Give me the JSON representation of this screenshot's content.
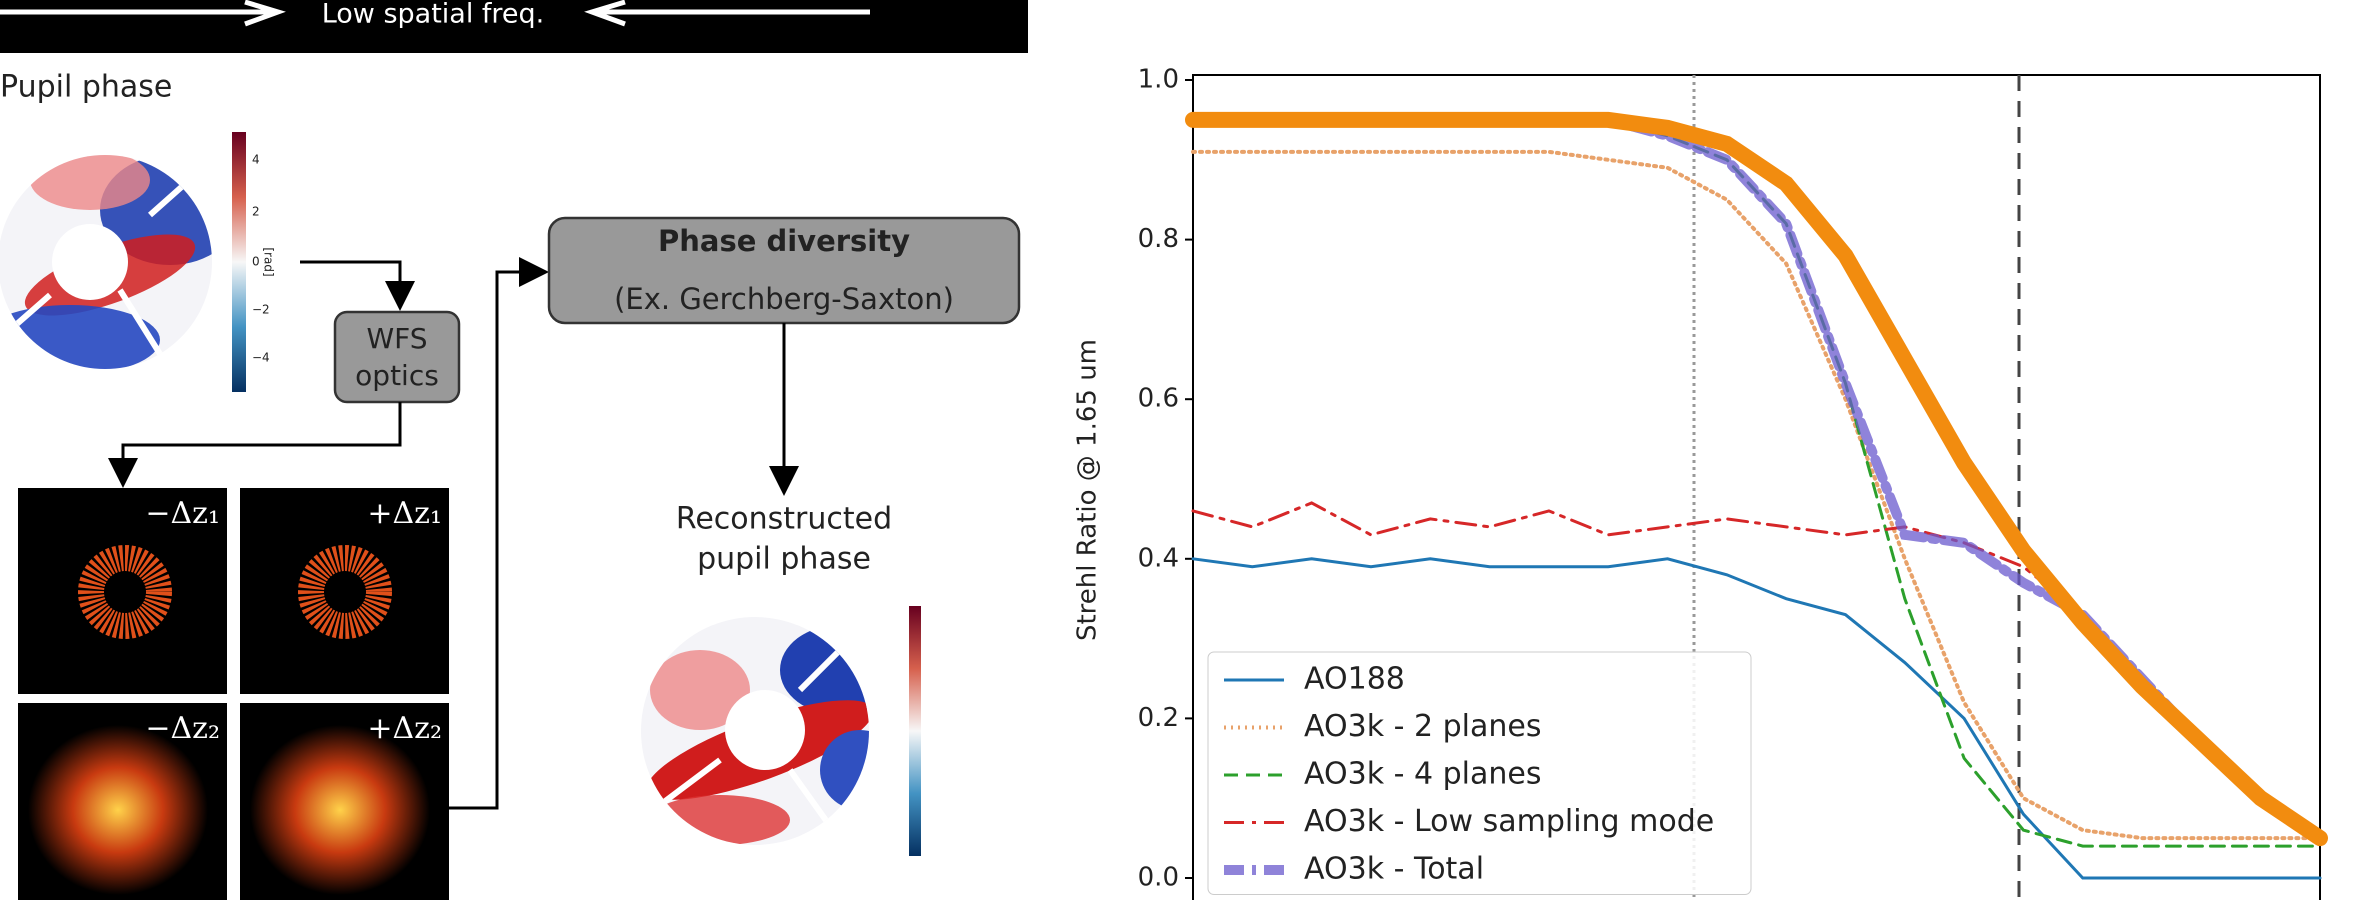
{
  "diagram": {
    "banner": "Low spatial freq.",
    "pupil_title": "Pupil phase",
    "colorbar": {
      "ticks": [
        "4",
        "2",
        "0",
        "−2",
        "−4"
      ],
      "unit": "[rad]"
    },
    "wfs_box": [
      "WFS",
      "optics"
    ],
    "phase_box": {
      "title": "Phase diversity",
      "subtitle": "(Ex. Gerchberg-Saxton)"
    },
    "panels": [
      "−Δz₁",
      "+Δz₁",
      "−Δz₂",
      "+Δz₂"
    ],
    "reconstructed": [
      "Reconstructed",
      "pupil phase"
    ]
  },
  "chart_data": {
    "type": "line",
    "ylabel": "Strehl Ratio @ 1.65 um",
    "categories": [
      null,
      null,
      null,
      null,
      null,
      null,
      null,
      null,
      null,
      null,
      null,
      null,
      null,
      null,
      null,
      null,
      null,
      null,
      null,
      null
    ],
    "ylim": [
      0,
      1.0
    ],
    "yticks": [
      {
        "value": 0,
        "label": "0.0"
      },
      0.2,
      0.4,
      0.6,
      0.8,
      {
        "value": 1.0,
        "label": "1.0"
      }
    ],
    "legend": "lower left",
    "series": [
      {
        "name": "AO188",
        "color": "#1f77b4",
        "linestyle": "solid",
        "linewidth": 3,
        "values": [
          0.4,
          0.39,
          0.4,
          0.39,
          0.4,
          0.39,
          0.39,
          0.39,
          0.4,
          0.38,
          0.35,
          0.33,
          0.27,
          0.2,
          0.08,
          0,
          0,
          0,
          0,
          0
        ]
      },
      {
        "name": "AO3k - 2 planes",
        "color": "#e8a26a",
        "linestyle": "dotted",
        "linewidth": 4,
        "values": [
          0.91,
          0.91,
          0.91,
          0.91,
          0.91,
          0.91,
          0.91,
          0.9,
          0.89,
          0.85,
          0.77,
          0.6,
          0.4,
          0.22,
          0.1,
          0.06,
          0.05,
          0.05,
          0.05,
          0.05
        ]
      },
      {
        "name": "AO3k - 4 planes",
        "color": "#2ca02c",
        "linestyle": "dashed",
        "linewidth": 3,
        "values": [
          0.95,
          0.95,
          0.95,
          0.95,
          0.95,
          0.95,
          0.95,
          0.95,
          0.93,
          0.9,
          0.82,
          0.62,
          0.35,
          0.15,
          0.06,
          0.04,
          0.04,
          0.04,
          0.04,
          0.04
        ]
      },
      {
        "name": "AO3k - Low sampling mode",
        "color": "#d62728",
        "linestyle": "dashdot",
        "linewidth": 3,
        "values": [
          0.46,
          0.44,
          0.47,
          0.43,
          0.45,
          0.44,
          0.46,
          0.43,
          0.44,
          0.45,
          0.44,
          0.43,
          0.44,
          0.42,
          0.39,
          0.33,
          0.25,
          0.17,
          0.1,
          0.05
        ]
      },
      {
        "name": "AO3k - Total",
        "color": "#6a5acd",
        "linestyle": "dashdot",
        "linewidth": 10,
        "values": [
          0.95,
          0.95,
          0.95,
          0.95,
          0.95,
          0.95,
          0.95,
          0.95,
          0.93,
          0.9,
          0.82,
          0.62,
          0.43,
          0.42,
          0.37,
          0.33,
          0.25,
          0.17,
          0.1,
          0.05
        ]
      },
      {
        "color": "#f28c0f",
        "linestyle": "solid",
        "linewidth": 16,
        "values": [
          0.95,
          0.95,
          0.95,
          0.95,
          0.95,
          0.95,
          0.95,
          0.95,
          0.94,
          0.92,
          0.87,
          0.78,
          0.65,
          0.52,
          0.41,
          0.32,
          0.24,
          0.17,
          0.1,
          0.05
        ]
      }
    ]
  }
}
